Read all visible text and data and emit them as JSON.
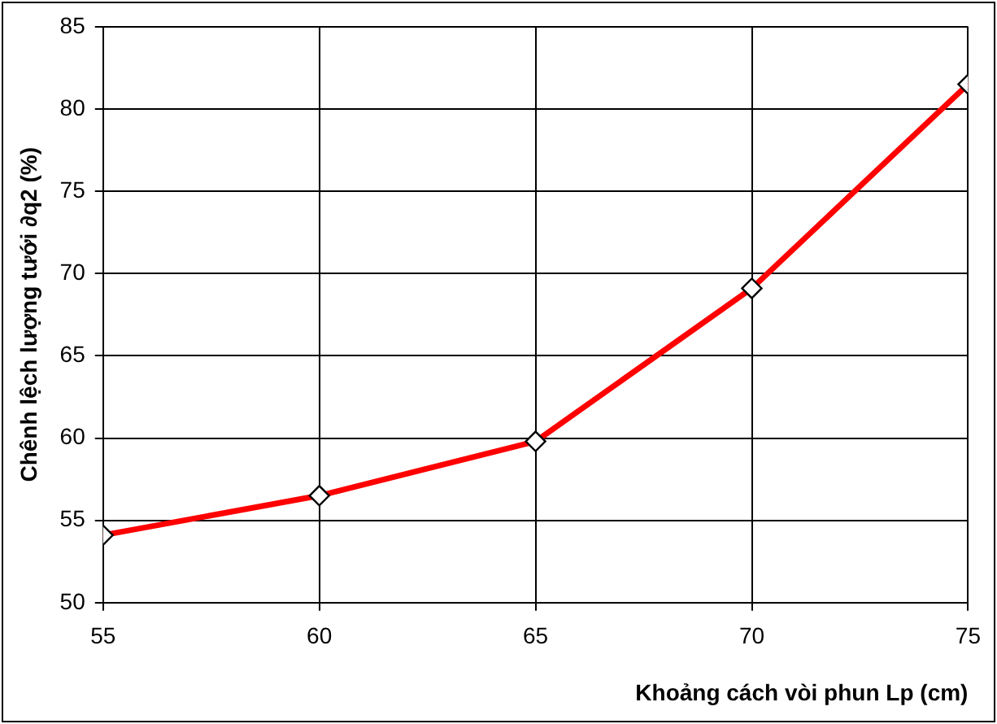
{
  "chart_data": {
    "type": "line",
    "xlabel": "Khoảng cách vòi phun Lp (cm)",
    "ylabel": "Chênh lệch lượng tưới ∂q2 (%)",
    "x": [
      55,
      60,
      65,
      70,
      75
    ],
    "series": [
      {
        "color": "#ff0000",
        "values": [
          54.1,
          56.5,
          59.8,
          69.1,
          81.5
        ]
      }
    ],
    "xlim": [
      55,
      75
    ],
    "xticks": [
      55,
      60,
      65,
      70,
      75
    ],
    "ylim": [
      50,
      85
    ],
    "yticks": [
      50,
      55,
      60,
      65,
      70,
      75,
      80,
      85
    ],
    "grid": true,
    "legend": false,
    "marker": "diamond",
    "line_style": "solid"
  }
}
